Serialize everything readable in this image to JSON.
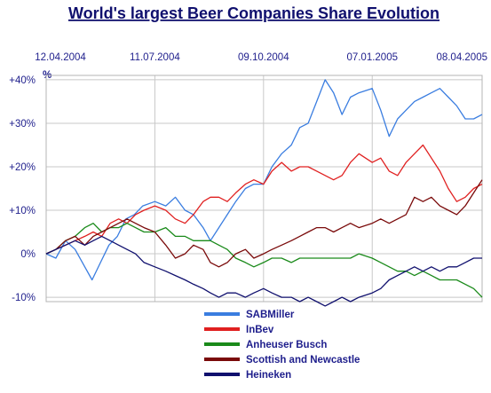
{
  "chart_data": {
    "type": "line",
    "title": "World's largest Beer Companies Share Evolution",
    "y_unit": "%",
    "x_date_labels": [
      "12.04.2004",
      "11.07.2004",
      "09.10.2004",
      "07.01.2005",
      "08.04.2005"
    ],
    "x_range": [
      "2004-04-12",
      "2005-04-08"
    ],
    "y_tick_labels": [
      "+40%",
      "+30%",
      "+20%",
      "+10%",
      "0%",
      "-10%"
    ],
    "y_ticks": [
      40,
      30,
      20,
      10,
      0,
      -10
    ],
    "ylim": [
      -11,
      41
    ],
    "grid": true,
    "legend_position": "bottom",
    "series": [
      {
        "name": "SABMiller",
        "color": "#3a7de0",
        "points": [
          [
            "2004-04-12",
            0
          ],
          [
            "2004-04-20",
            -1
          ],
          [
            "2004-04-28",
            3
          ],
          [
            "2004-05-06",
            1
          ],
          [
            "2004-05-14",
            -3
          ],
          [
            "2004-05-20",
            -6
          ],
          [
            "2004-05-27",
            -2
          ],
          [
            "2004-06-03",
            2
          ],
          [
            "2004-06-10",
            4
          ],
          [
            "2004-06-17",
            8
          ],
          [
            "2004-06-24",
            9
          ],
          [
            "2004-07-01",
            11
          ],
          [
            "2004-07-11",
            12
          ],
          [
            "2004-07-20",
            11
          ],
          [
            "2004-07-28",
            13
          ],
          [
            "2004-08-05",
            10
          ],
          [
            "2004-08-12",
            9
          ],
          [
            "2004-08-20",
            6
          ],
          [
            "2004-08-26",
            3
          ],
          [
            "2004-09-02",
            6
          ],
          [
            "2004-09-09",
            9
          ],
          [
            "2004-09-16",
            12
          ],
          [
            "2004-09-24",
            15
          ],
          [
            "2004-10-01",
            16
          ],
          [
            "2004-10-09",
            16
          ],
          [
            "2004-10-16",
            20
          ],
          [
            "2004-10-24",
            23
          ],
          [
            "2004-11-01",
            25
          ],
          [
            "2004-11-08",
            29
          ],
          [
            "2004-11-15",
            30
          ],
          [
            "2004-11-22",
            35
          ],
          [
            "2004-11-29",
            40
          ],
          [
            "2004-12-06",
            37
          ],
          [
            "2004-12-13",
            32
          ],
          [
            "2004-12-20",
            36
          ],
          [
            "2004-12-27",
            37
          ],
          [
            "2005-01-07",
            38
          ],
          [
            "2005-01-14",
            33
          ],
          [
            "2005-01-21",
            27
          ],
          [
            "2005-01-28",
            31
          ],
          [
            "2005-02-04",
            33
          ],
          [
            "2005-02-11",
            35
          ],
          [
            "2005-02-18",
            36
          ],
          [
            "2005-02-25",
            37
          ],
          [
            "2005-03-04",
            38
          ],
          [
            "2005-03-11",
            36
          ],
          [
            "2005-03-18",
            34
          ],
          [
            "2005-03-25",
            31
          ],
          [
            "2005-04-01",
            31
          ],
          [
            "2005-04-08",
            32
          ]
        ]
      },
      {
        "name": "InBev",
        "color": "#e02020",
        "points": [
          [
            "2004-04-12",
            0
          ],
          [
            "2004-04-20",
            1
          ],
          [
            "2004-04-28",
            2
          ],
          [
            "2004-05-06",
            3
          ],
          [
            "2004-05-14",
            4
          ],
          [
            "2004-05-21",
            5
          ],
          [
            "2004-05-28",
            4
          ],
          [
            "2004-06-04",
            7
          ],
          [
            "2004-06-11",
            8
          ],
          [
            "2004-06-18",
            7
          ],
          [
            "2004-06-25",
            9
          ],
          [
            "2004-07-02",
            10
          ],
          [
            "2004-07-11",
            11
          ],
          [
            "2004-07-20",
            10
          ],
          [
            "2004-07-28",
            8
          ],
          [
            "2004-08-05",
            7
          ],
          [
            "2004-08-12",
            9
          ],
          [
            "2004-08-20",
            12
          ],
          [
            "2004-08-26",
            13
          ],
          [
            "2004-09-02",
            13
          ],
          [
            "2004-09-09",
            12
          ],
          [
            "2004-09-16",
            14
          ],
          [
            "2004-09-24",
            16
          ],
          [
            "2004-10-01",
            17
          ],
          [
            "2004-10-09",
            16
          ],
          [
            "2004-10-16",
            19
          ],
          [
            "2004-10-24",
            21
          ],
          [
            "2004-11-01",
            19
          ],
          [
            "2004-11-08",
            20
          ],
          [
            "2004-11-15",
            20
          ],
          [
            "2004-11-22",
            19
          ],
          [
            "2004-11-29",
            18
          ],
          [
            "2004-12-06",
            17
          ],
          [
            "2004-12-13",
            18
          ],
          [
            "2004-12-20",
            21
          ],
          [
            "2004-12-27",
            23
          ],
          [
            "2005-01-07",
            21
          ],
          [
            "2005-01-14",
            22
          ],
          [
            "2005-01-21",
            19
          ],
          [
            "2005-01-28",
            18
          ],
          [
            "2005-02-04",
            21
          ],
          [
            "2005-02-11",
            23
          ],
          [
            "2005-02-18",
            25
          ],
          [
            "2005-02-25",
            22
          ],
          [
            "2005-03-04",
            19
          ],
          [
            "2005-03-11",
            15
          ],
          [
            "2005-03-18",
            12
          ],
          [
            "2005-03-25",
            13
          ],
          [
            "2005-04-01",
            15
          ],
          [
            "2005-04-08",
            16
          ]
        ]
      },
      {
        "name": "Anheuser Busch",
        "color": "#1a8a1a",
        "points": [
          [
            "2004-04-12",
            0
          ],
          [
            "2004-04-20",
            1
          ],
          [
            "2004-04-28",
            3
          ],
          [
            "2004-05-06",
            4
          ],
          [
            "2004-05-14",
            6
          ],
          [
            "2004-05-21",
            7
          ],
          [
            "2004-05-28",
            5
          ],
          [
            "2004-06-04",
            6
          ],
          [
            "2004-06-11",
            6
          ],
          [
            "2004-06-18",
            7
          ],
          [
            "2004-06-25",
            6
          ],
          [
            "2004-07-02",
            5
          ],
          [
            "2004-07-11",
            5
          ],
          [
            "2004-07-20",
            6
          ],
          [
            "2004-07-28",
            4
          ],
          [
            "2004-08-05",
            4
          ],
          [
            "2004-08-12",
            3
          ],
          [
            "2004-08-20",
            3
          ],
          [
            "2004-08-26",
            3
          ],
          [
            "2004-09-02",
            2
          ],
          [
            "2004-09-09",
            1
          ],
          [
            "2004-09-16",
            -1
          ],
          [
            "2004-09-24",
            -2
          ],
          [
            "2004-10-01",
            -3
          ],
          [
            "2004-10-09",
            -2
          ],
          [
            "2004-10-16",
            -1
          ],
          [
            "2004-10-24",
            -1
          ],
          [
            "2004-11-01",
            -2
          ],
          [
            "2004-11-08",
            -1
          ],
          [
            "2004-11-15",
            -1
          ],
          [
            "2004-11-22",
            -1
          ],
          [
            "2004-11-29",
            -1
          ],
          [
            "2004-12-06",
            -1
          ],
          [
            "2004-12-13",
            -1
          ],
          [
            "2004-12-20",
            -1
          ],
          [
            "2004-12-27",
            0
          ],
          [
            "2005-01-07",
            -1
          ],
          [
            "2005-01-14",
            -2
          ],
          [
            "2005-01-21",
            -3
          ],
          [
            "2005-01-28",
            -4
          ],
          [
            "2005-02-04",
            -4
          ],
          [
            "2005-02-11",
            -5
          ],
          [
            "2005-02-18",
            -4
          ],
          [
            "2005-02-25",
            -5
          ],
          [
            "2005-03-04",
            -6
          ],
          [
            "2005-03-11",
            -6
          ],
          [
            "2005-03-18",
            -6
          ],
          [
            "2005-03-25",
            -7
          ],
          [
            "2005-04-01",
            -8
          ],
          [
            "2005-04-08",
            -10
          ]
        ]
      },
      {
        "name": "Scottish and Newcastle",
        "color": "#7a0a0a",
        "points": [
          [
            "2004-04-12",
            0
          ],
          [
            "2004-04-20",
            1
          ],
          [
            "2004-04-28",
            3
          ],
          [
            "2004-05-06",
            4
          ],
          [
            "2004-05-14",
            2
          ],
          [
            "2004-05-21",
            4
          ],
          [
            "2004-05-28",
            5
          ],
          [
            "2004-06-04",
            6
          ],
          [
            "2004-06-11",
            7
          ],
          [
            "2004-06-18",
            8
          ],
          [
            "2004-06-25",
            7
          ],
          [
            "2004-07-02",
            6
          ],
          [
            "2004-07-11",
            5
          ],
          [
            "2004-07-20",
            2
          ],
          [
            "2004-07-28",
            -1
          ],
          [
            "2004-08-05",
            0
          ],
          [
            "2004-08-12",
            2
          ],
          [
            "2004-08-20",
            1
          ],
          [
            "2004-08-26",
            -2
          ],
          [
            "2004-09-02",
            -3
          ],
          [
            "2004-09-09",
            -2
          ],
          [
            "2004-09-16",
            0
          ],
          [
            "2004-09-24",
            1
          ],
          [
            "2004-10-01",
            -1
          ],
          [
            "2004-10-09",
            0
          ],
          [
            "2004-10-16",
            1
          ],
          [
            "2004-10-24",
            2
          ],
          [
            "2004-11-01",
            3
          ],
          [
            "2004-11-08",
            4
          ],
          [
            "2004-11-15",
            5
          ],
          [
            "2004-11-22",
            6
          ],
          [
            "2004-11-29",
            6
          ],
          [
            "2004-12-06",
            5
          ],
          [
            "2004-12-13",
            6
          ],
          [
            "2004-12-20",
            7
          ],
          [
            "2004-12-27",
            6
          ],
          [
            "2005-01-07",
            7
          ],
          [
            "2005-01-14",
            8
          ],
          [
            "2005-01-21",
            7
          ],
          [
            "2005-01-28",
            8
          ],
          [
            "2005-02-04",
            9
          ],
          [
            "2005-02-11",
            13
          ],
          [
            "2005-02-18",
            12
          ],
          [
            "2005-02-25",
            13
          ],
          [
            "2005-03-04",
            11
          ],
          [
            "2005-03-11",
            10
          ],
          [
            "2005-03-18",
            9
          ],
          [
            "2005-03-25",
            11
          ],
          [
            "2005-04-01",
            14
          ],
          [
            "2005-04-08",
            17
          ]
        ]
      },
      {
        "name": "Heineken",
        "color": "#10106e",
        "points": [
          [
            "2004-04-12",
            0
          ],
          [
            "2004-04-20",
            1
          ],
          [
            "2004-04-28",
            2
          ],
          [
            "2004-05-06",
            3
          ],
          [
            "2004-05-14",
            2
          ],
          [
            "2004-05-21",
            3
          ],
          [
            "2004-05-28",
            4
          ],
          [
            "2004-06-04",
            3
          ],
          [
            "2004-06-11",
            2
          ],
          [
            "2004-06-18",
            1
          ],
          [
            "2004-06-25",
            0
          ],
          [
            "2004-07-02",
            -2
          ],
          [
            "2004-07-11",
            -3
          ],
          [
            "2004-07-20",
            -4
          ],
          [
            "2004-07-28",
            -5
          ],
          [
            "2004-08-05",
            -6
          ],
          [
            "2004-08-12",
            -7
          ],
          [
            "2004-08-20",
            -8
          ],
          [
            "2004-08-26",
            -9
          ],
          [
            "2004-09-02",
            -10
          ],
          [
            "2004-09-09",
            -9
          ],
          [
            "2004-09-16",
            -9
          ],
          [
            "2004-09-24",
            -10
          ],
          [
            "2004-10-01",
            -9
          ],
          [
            "2004-10-09",
            -8
          ],
          [
            "2004-10-16",
            -9
          ],
          [
            "2004-10-24",
            -10
          ],
          [
            "2004-11-01",
            -10
          ],
          [
            "2004-11-08",
            -11
          ],
          [
            "2004-11-15",
            -10
          ],
          [
            "2004-11-22",
            -11
          ],
          [
            "2004-11-29",
            -12
          ],
          [
            "2004-12-06",
            -11
          ],
          [
            "2004-12-13",
            -10
          ],
          [
            "2004-12-20",
            -11
          ],
          [
            "2004-12-27",
            -10
          ],
          [
            "2005-01-07",
            -9
          ],
          [
            "2005-01-14",
            -8
          ],
          [
            "2005-01-21",
            -6
          ],
          [
            "2005-01-28",
            -5
          ],
          [
            "2005-02-04",
            -4
          ],
          [
            "2005-02-11",
            -3
          ],
          [
            "2005-02-18",
            -4
          ],
          [
            "2005-02-25",
            -3
          ],
          [
            "2005-03-04",
            -4
          ],
          [
            "2005-03-11",
            -3
          ],
          [
            "2005-03-18",
            -3
          ],
          [
            "2005-03-25",
            -2
          ],
          [
            "2005-04-01",
            -1
          ],
          [
            "2005-04-08",
            -1
          ]
        ]
      }
    ]
  }
}
